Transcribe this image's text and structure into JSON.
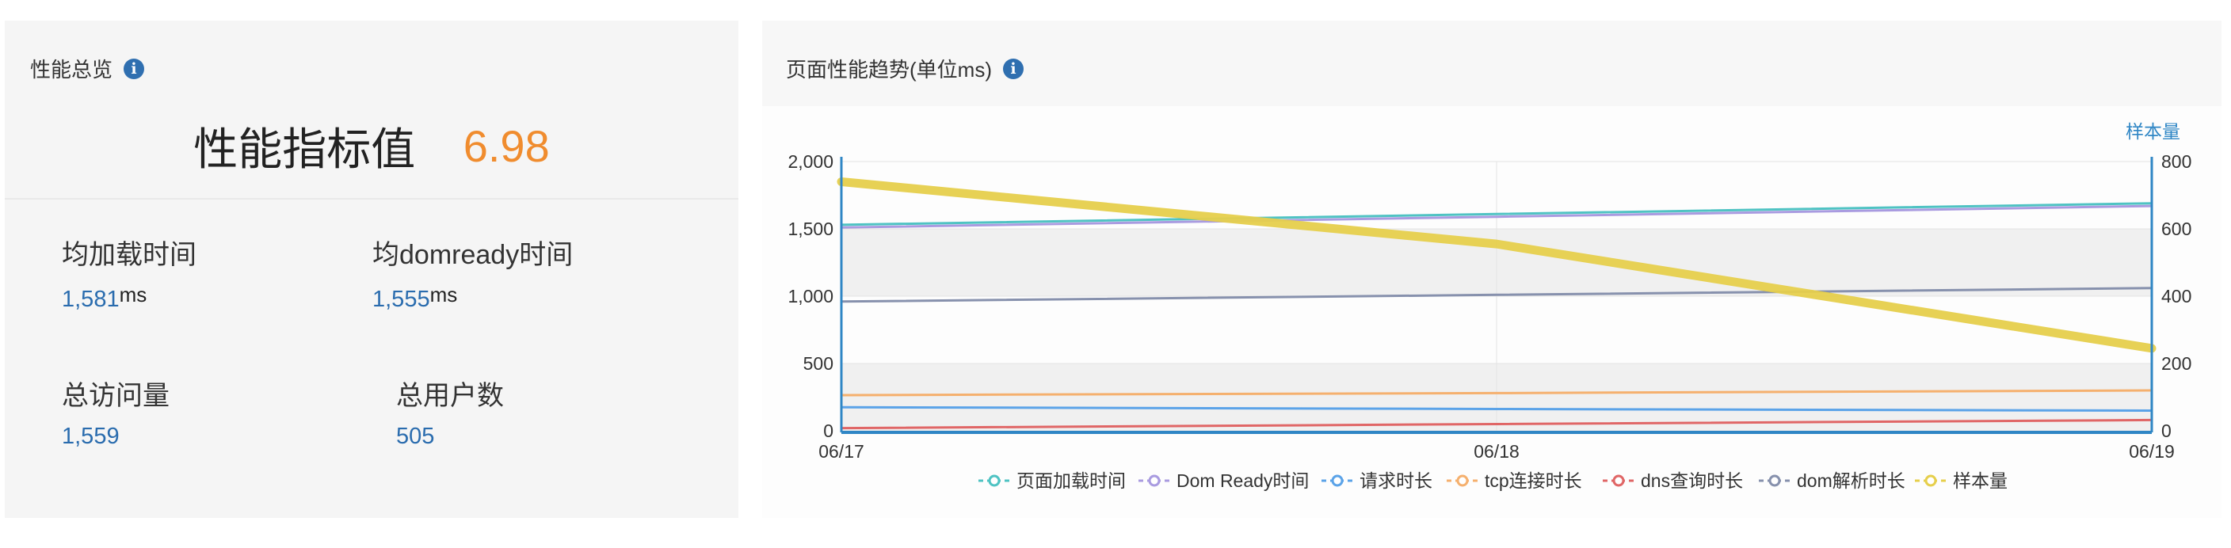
{
  "overview": {
    "title": "性能总览",
    "index_label": "性能指标值",
    "index_value": "6.98",
    "metrics": [
      {
        "label": "均加载时间",
        "value": "1,581",
        "unit": "ms"
      },
      {
        "label": "均domready时间",
        "value": "1,555",
        "unit": "ms"
      },
      {
        "label": "总访问量",
        "value": "1,559",
        "unit": ""
      },
      {
        "label": "总用户数",
        "value": "505",
        "unit": ""
      }
    ]
  },
  "trend": {
    "title": "页面性能趋势(单位ms)",
    "right_axis_title": "样本量"
  },
  "colors": {
    "accent_orange": "#f08c2e",
    "link_blue": "#2a6cae",
    "info_icon": "#2f6fb0",
    "axis_blue": "#2f86c5"
  },
  "chart_data": {
    "type": "line",
    "x": [
      "06/17",
      "06/18",
      "06/19"
    ],
    "y_left": {
      "ticks": [
        "0",
        "500",
        "1,000",
        "1,500",
        "2,000"
      ],
      "ylim": [
        0,
        2000
      ]
    },
    "y_right": {
      "title": "样本量",
      "ticks": [
        "0",
        "200",
        "400",
        "600",
        "800"
      ],
      "ylim": [
        0,
        800
      ]
    },
    "grid": "alternating horizontal bands",
    "legend_position": "bottom",
    "series": [
      {
        "name": "页面加载时间",
        "color": "#4fc3c3",
        "axis": "left",
        "values": [
          1530,
          1610,
          1690
        ],
        "width": 3
      },
      {
        "name": "Dom Ready时间",
        "color": "#a99be0",
        "axis": "left",
        "values": [
          1510,
          1590,
          1670
        ],
        "width": 3
      },
      {
        "name": "请求时长",
        "color": "#5ba3e8",
        "axis": "left",
        "values": [
          175,
          162,
          150
        ],
        "width": 3
      },
      {
        "name": "tcp连接时长",
        "color": "#f5b06e",
        "axis": "left",
        "values": [
          265,
          280,
          300
        ],
        "width": 3
      },
      {
        "name": "dns查询时长",
        "color": "#e06666",
        "axis": "left",
        "values": [
          20,
          50,
          80
        ],
        "width": 3
      },
      {
        "name": "dom解析时长",
        "color": "#8791ad",
        "axis": "left",
        "values": [
          960,
          1010,
          1060
        ],
        "width": 3
      },
      {
        "name": "样本量",
        "color": "#e6cf4c",
        "axis": "right",
        "values": [
          740,
          555,
          245
        ],
        "width": 11
      }
    ]
  }
}
